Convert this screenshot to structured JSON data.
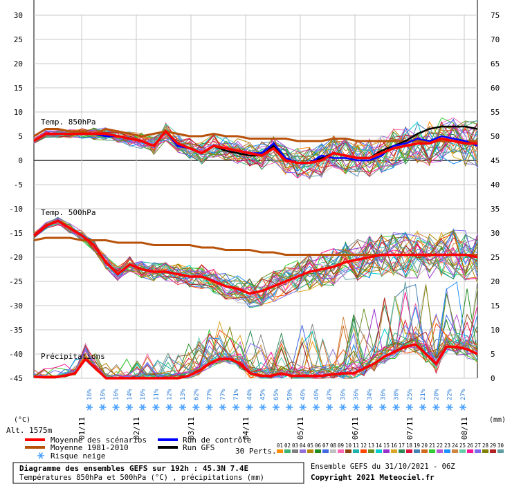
{
  "chart_data": {
    "type": "line",
    "x_ticks": [
      "01/11",
      "02/11",
      "03/11",
      "04/11",
      "05/11",
      "06/11",
      "07/11",
      "08/11"
    ],
    "left_axis": {
      "ticks": [
        30,
        25,
        20,
        15,
        10,
        5,
        0,
        -5,
        -10,
        -15,
        -20,
        -25,
        -30,
        -35,
        -40,
        -45
      ],
      "unit": "(°C)",
      "ylim": [
        -45,
        30
      ]
    },
    "right_axis": {
      "ticks": [
        75,
        70,
        65,
        60,
        55,
        50,
        45,
        40,
        35,
        30,
        25,
        20,
        15,
        10,
        5,
        0
      ],
      "unit": "(mm)",
      "ylim": [
        0,
        75
      ]
    },
    "annotations": {
      "t850": "Temp. 850hPa",
      "t500": "Temp. 500hPa",
      "precip": "Précipitations",
      "alt": "Alt. 1575m"
    },
    "snow_risk_pct": [
      "16%",
      "16%",
      "16%",
      "14%",
      "16%",
      "11%",
      "12%",
      "13%",
      "62%",
      "77%",
      "77%",
      "71%",
      "44%",
      "45%",
      "65%",
      "50%",
      "46%",
      "46%",
      "47%",
      "36%",
      "36%",
      "34%",
      "36%",
      "38%",
      "25%",
      "21%",
      "20%",
      "22%",
      "27%"
    ],
    "series": [
      {
        "name": "Moyenne des scénarios",
        "color": "#ff0000",
        "group": "t850",
        "values": [
          4,
          5.5,
          5.5,
          5.5,
          5.5,
          5.5,
          5.5,
          5,
          4.5,
          4,
          3,
          6,
          3.5,
          2.5,
          1.5,
          3,
          2.5,
          2,
          1.5,
          1,
          2.5,
          0,
          -0.5,
          -0.5,
          0,
          1.5,
          1,
          0.5,
          0.5,
          1.5,
          2.5,
          3,
          3.5,
          3.5,
          4.5,
          4,
          3.5,
          3.5
        ]
      },
      {
        "name": "Moyenne 1981-2010",
        "color": "#b8520a",
        "group": "t850",
        "values": [
          5,
          6.5,
          6.5,
          6,
          6,
          5.5,
          6.5,
          6,
          5.5,
          5,
          5.5,
          6,
          5.5,
          5,
          5,
          5.5,
          5,
          5,
          4.5,
          4.5,
          4.5,
          4.5,
          4,
          4,
          4,
          4.5,
          4.5,
          4,
          4,
          4,
          4,
          4,
          4,
          4,
          4,
          4,
          4,
          4
        ]
      },
      {
        "name": "Moyenne des scénarios",
        "color": "#ff0000",
        "group": "t500",
        "values": [
          -15.5,
          -13.5,
          -12.5,
          -14,
          -15.5,
          -17.5,
          -21,
          -23.5,
          -21.5,
          -22.5,
          -23,
          -23,
          -23.5,
          -24,
          -24,
          -25,
          -26,
          -26.5,
          -27.5,
          -27,
          -26,
          -25,
          -24,
          -23,
          -22.5,
          -22,
          -21,
          -20.5,
          -20,
          -19.5,
          -19.5,
          -19.5,
          -19.5,
          -19.5,
          -19.5,
          -19.5,
          -19.5,
          -20
        ]
      },
      {
        "name": "Moyenne 1981-2010",
        "color": "#b8520a",
        "group": "t500",
        "values": [
          -16.5,
          -16,
          -16,
          -16,
          -16.5,
          -16.5,
          -16.5,
          -17,
          -17,
          -17,
          -17.5,
          -17.5,
          -17.5,
          -17.5,
          -18,
          -18,
          -18.5,
          -18.5,
          -18.5,
          -19,
          -19,
          -19.5,
          -19.5,
          -19.5,
          -19.5,
          -19.5,
          -19.5,
          -19.5,
          -19.5,
          -19.5,
          -19.5,
          -19.5,
          -19.5,
          -19.5,
          -19.5,
          -19.5,
          -19.5,
          -19.5
        ]
      },
      {
        "name": "Moyenne des scénarios",
        "color": "#ff0000",
        "group": "precip",
        "values": [
          0.3,
          0.2,
          0.2,
          0.5,
          1,
          4,
          2,
          0,
          0,
          0,
          0,
          0,
          0,
          0,
          0,
          0.5,
          1.5,
          3,
          4,
          4,
          3,
          1,
          0.5,
          0.5,
          1,
          0.5,
          0.5,
          0.5,
          0.5,
          0.8,
          1,
          1,
          2,
          3,
          4.5,
          5.5,
          6.5,
          7,
          5,
          3,
          6.5,
          6.5,
          6,
          5
        ]
      },
      {
        "name": "Run de contrôle",
        "color": "#0000ff",
        "group": "t850",
        "values": [
          4,
          5.5,
          5.5,
          5.5,
          5.5,
          5.5,
          5,
          5,
          4.5,
          4,
          3,
          6,
          3,
          2.5,
          1.5,
          3,
          2.5,
          2,
          1.5,
          1.5,
          3.5,
          0.5,
          -0.5,
          -0.5,
          1,
          0.5,
          0.5,
          0,
          0,
          1,
          3,
          3.5,
          4.5,
          4,
          5,
          4.5,
          4,
          3
        ]
      },
      {
        "name": "Run GFS",
        "color": "#000000",
        "group": "t850",
        "values": [
          4,
          5.5,
          5.5,
          5.5,
          5.5,
          5.5,
          5,
          5,
          4.5,
          4,
          3,
          6,
          3,
          2.5,
          1.5,
          3,
          2,
          1.5,
          1,
          1,
          3,
          0,
          -0.5,
          -0.5,
          0.5,
          1.5,
          1,
          0.5,
          0.5,
          2,
          3,
          4,
          5.5,
          6.5,
          7,
          7,
          7,
          6.5
        ]
      }
    ]
  },
  "legend": {
    "items": [
      {
        "label": "Moyenne des scénarios",
        "color": "#ff0000"
      },
      {
        "label": "Moyenne 1981-2010",
        "color": "#b8520a"
      },
      {
        "label": "Risque neige",
        "color": "#4aa0ff"
      },
      {
        "label": "Run de contrôle",
        "color": "#0000ff"
      },
      {
        "label": "Run GFS",
        "color": "#000000"
      }
    ],
    "perts_label": "30 Perts.",
    "member_ids": [
      "01",
      "02",
      "03",
      "04",
      "05",
      "06",
      "07",
      "08",
      "09",
      "10",
      "11",
      "12",
      "13",
      "14",
      "15",
      "16",
      "17",
      "18",
      "19",
      "20",
      "21",
      "22",
      "23",
      "24",
      "25",
      "26",
      "27",
      "28",
      "29",
      "30"
    ],
    "member_colors": [
      "#ff8c00",
      "#3cb371",
      "#808080",
      "#9370db",
      "#b8860b",
      "#228b22",
      "#4169e1",
      "#c0c0c0",
      "#ff69b4",
      "#8b4513",
      "#20b2aa",
      "#ff4500",
      "#6b8e23",
      "#00ced1",
      "#9932cc",
      "#daa520",
      "#2e8b57",
      "#dc143c",
      "#4682b4",
      "#d2691e",
      "#32cd32",
      "#ba55d3",
      "#1e90ff",
      "#cd853f",
      "#66cdaa",
      "#ff1493",
      "#7b68ee",
      "#808000",
      "#b22222",
      "#5f9ea0"
    ]
  },
  "footer": {
    "title_line": "Diagramme des ensembles GEFS sur 192h : 45.3N 7.4E",
    "subtitle_line": "Températures 850hPa et 500hPa (°C) , précipitations (mm)",
    "run_line": "Ensemble GEFS du 31/10/2021 - 06Z",
    "copyright": "Copyright 2021 Meteociel.fr"
  }
}
